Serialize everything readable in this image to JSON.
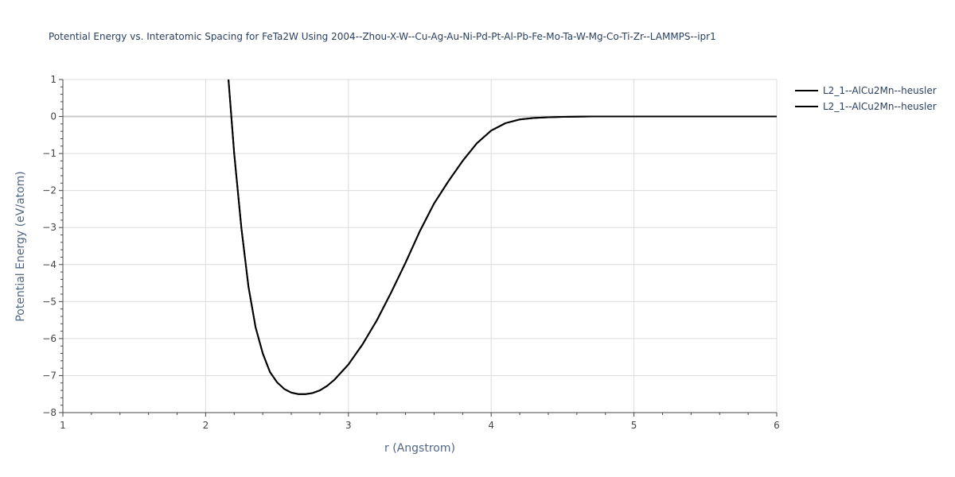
{
  "chart_data": {
    "type": "line",
    "title": "Potential Energy vs. Interatomic Spacing for FeTa2W Using 2004--Zhou-X-W--Cu-Ag-Au-Ni-Pd-Pt-Al-Pb-Fe-Mo-Ta-W-Mg-Co-Ti-Zr--LAMMPS--ipr1",
    "xlabel": "r (Angstrom)",
    "ylabel": "Potential Energy (eV/atom)",
    "xlim": [
      1,
      6
    ],
    "ylim": [
      -8,
      1
    ],
    "xticks": [
      1,
      2,
      3,
      4,
      5,
      6
    ],
    "yticks": [
      1,
      0,
      -1,
      -2,
      -3,
      -4,
      -5,
      -6,
      -7,
      -8
    ],
    "grid": true,
    "legend_position": "top-right",
    "series": [
      {
        "name": "L2_1--AlCu2Mn--heusler",
        "color": "#000000",
        "x": [
          2.16,
          2.2,
          2.25,
          2.3,
          2.35,
          2.4,
          2.45,
          2.5,
          2.55,
          2.6,
          2.65,
          2.7,
          2.75,
          2.8,
          2.85,
          2.9,
          3.0,
          3.1,
          3.2,
          3.3,
          3.4,
          3.5,
          3.6,
          3.7,
          3.8,
          3.9,
          4.0,
          4.1,
          4.2,
          4.3,
          4.4,
          4.5,
          4.7,
          5.0,
          6.0
        ],
        "y": [
          1.0,
          -1.0,
          -3.0,
          -4.6,
          -5.7,
          -6.4,
          -6.9,
          -7.18,
          -7.36,
          -7.46,
          -7.5,
          -7.5,
          -7.47,
          -7.4,
          -7.28,
          -7.12,
          -6.7,
          -6.15,
          -5.5,
          -4.75,
          -3.95,
          -3.1,
          -2.35,
          -1.75,
          -1.2,
          -0.72,
          -0.38,
          -0.18,
          -0.08,
          -0.04,
          -0.02,
          -0.01,
          0.0,
          0.0,
          0.0
        ]
      },
      {
        "name": "L2_1--AlCu2Mn--heusler",
        "color": "#000000",
        "x": [
          2.16,
          2.2,
          2.25,
          2.3,
          2.35,
          2.4,
          2.45,
          2.5,
          2.55,
          2.6,
          2.65,
          2.7,
          2.75,
          2.8,
          2.85,
          2.9,
          3.0,
          3.1,
          3.2,
          3.3,
          3.4,
          3.5,
          3.6,
          3.7,
          3.8,
          3.9,
          4.0,
          4.1,
          4.2,
          4.3,
          4.4,
          4.5,
          4.7,
          5.0,
          6.0
        ],
        "y": [
          1.0,
          -1.0,
          -3.0,
          -4.6,
          -5.7,
          -6.4,
          -6.9,
          -7.18,
          -7.36,
          -7.46,
          -7.5,
          -7.5,
          -7.47,
          -7.4,
          -7.28,
          -7.12,
          -6.7,
          -6.15,
          -5.5,
          -4.75,
          -3.95,
          -3.1,
          -2.35,
          -1.75,
          -1.2,
          -0.72,
          -0.38,
          -0.18,
          -0.08,
          -0.04,
          -0.02,
          -0.01,
          0.0,
          0.0,
          0.0
        ]
      }
    ]
  }
}
